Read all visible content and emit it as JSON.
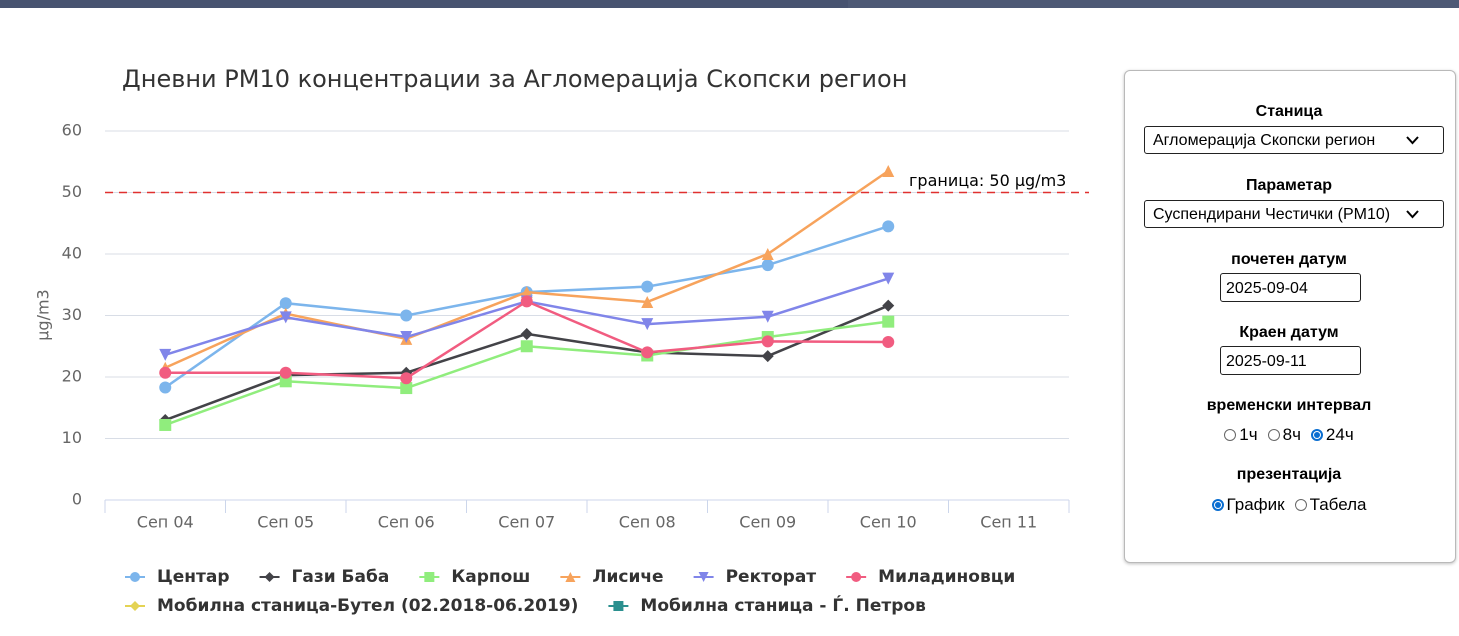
{
  "chart_data": {
    "type": "line",
    "title": "Дневни PM10 концентрации за Агломерација Скопски регион",
    "y_label": "µg/m3",
    "categories": [
      "Сеп 04",
      "Сеп 05",
      "Сеп 06",
      "Сеп 07",
      "Сеп 08",
      "Сеп 09",
      "Сеп 10",
      "Сеп 11"
    ],
    "ylim": [
      0,
      60
    ],
    "yticks": [
      0,
      10,
      20,
      30,
      40,
      50,
      60
    ],
    "grid": true,
    "plot_lines": [
      {
        "value": 50,
        "label": "граница: 50 µg/m3",
        "color": "#e0302f"
      }
    ],
    "series": [
      {
        "name": "Центар",
        "color": "#7cb5ec",
        "marker": "circle",
        "values": [
          18.3,
          32,
          30,
          33.8,
          34.7,
          38.2,
          44.5,
          null
        ]
      },
      {
        "name": "Гази Баба",
        "color": "#434348",
        "marker": "diamond",
        "values": [
          13,
          20.3,
          20.7,
          27,
          24,
          23.4,
          31.6,
          null
        ]
      },
      {
        "name": "Карпош",
        "color": "#90ed7d",
        "marker": "square",
        "values": [
          12.2,
          19.3,
          18.2,
          25,
          23.5,
          26.5,
          29,
          null
        ]
      },
      {
        "name": "Лисиче",
        "color": "#f7a35c",
        "marker": "triangle",
        "values": [
          21.5,
          30.3,
          26.2,
          33.8,
          32.2,
          40,
          53.5,
          null
        ]
      },
      {
        "name": "Ректорат",
        "color": "#8085e9",
        "marker": "triangle-down",
        "values": [
          23.6,
          29.7,
          26.5,
          32.3,
          28.6,
          29.8,
          36,
          null
        ]
      },
      {
        "name": "Миладиновци",
        "color": "#f15c80",
        "marker": "circle",
        "values": [
          20.7,
          20.7,
          19.8,
          32.3,
          24,
          25.8,
          25.7,
          null
        ]
      },
      {
        "name": "Мобилна станица-Бутел (02.2018-06.2019)",
        "color": "#e4d354",
        "marker": "diamond",
        "values": [
          null,
          null,
          null,
          null,
          null,
          null,
          null,
          null
        ]
      },
      {
        "name": "Мобилна станица - Ѓ. Петров",
        "color": "#2b908f",
        "marker": "square",
        "values": [
          null,
          null,
          null,
          null,
          null,
          null,
          null,
          null
        ]
      }
    ]
  },
  "form": {
    "station": {
      "label": "Станица",
      "value": "Агломерација Скопски регион"
    },
    "parameter": {
      "label": "Параметар",
      "value": "Суспендирани Честички (PM10)"
    },
    "start_date": {
      "label": "почетен датум",
      "value": "2025-09-04"
    },
    "end_date": {
      "label": "Краен датум",
      "value": "2025-09-11"
    },
    "interval": {
      "label": "временски интервал",
      "options": [
        "1ч",
        "8ч",
        "24ч"
      ],
      "selected": 2
    },
    "presentation": {
      "label": "презентација",
      "options": [
        "График",
        "Табела"
      ],
      "selected": 0
    }
  }
}
